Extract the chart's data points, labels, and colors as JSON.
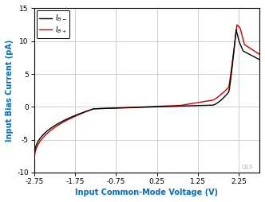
{
  "xlabel": "Input Common-Mode Voltage (V)",
  "ylabel": "Input Bias Current (pA)",
  "xlim": [
    -2.75,
    2.75
  ],
  "ylim": [
    -10,
    15
  ],
  "xticks": [
    -2.75,
    -1.75,
    -0.75,
    0.25,
    1.25,
    2.25
  ],
  "yticks": [
    -10,
    -5,
    0,
    5,
    10,
    15
  ],
  "color_minus": "#000000",
  "color_plus": "#cc0000",
  "background_color": "#ffffff",
  "grid_color": "#c8c8c8",
  "label_color": "#0070c0",
  "watermark": "Q1S",
  "lw": 1.0
}
